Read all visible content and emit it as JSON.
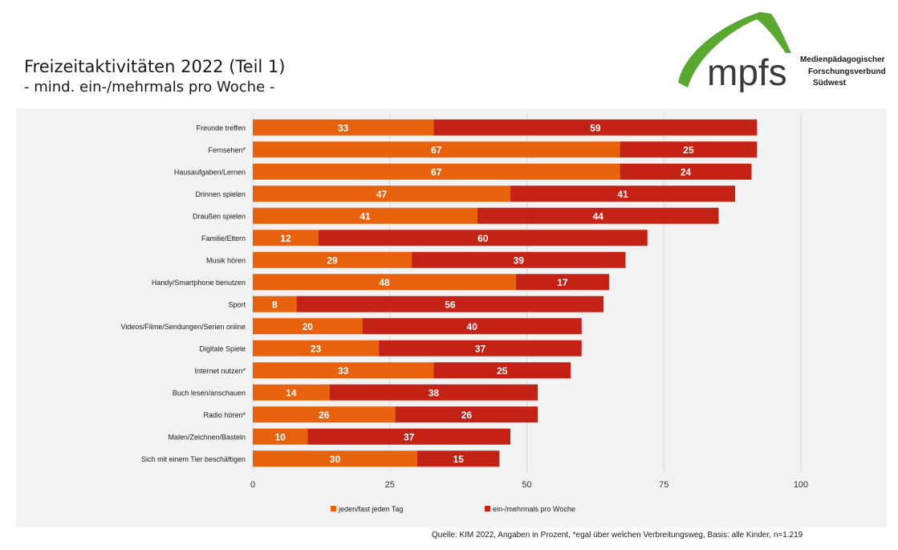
{
  "title": "Freizeitaktivitäten 2022 (Teil 1)",
  "subtitle": "- mind. ein-/mehrmals pro Woche -",
  "logo": {
    "wordmark": "mpfs",
    "lines": [
      "Medienpädagogischer",
      "Forschungsverbund",
      "Südwest"
    ],
    "green": "#5aa832",
    "dark": "#3a3a3a"
  },
  "footer": "Quelle: KIM 2022, Angaben in Prozent, *egal über welchen Verbreitungsweg, Basis: alle Kinder, n=1.219",
  "chart_data": {
    "type": "bar",
    "orientation": "horizontal",
    "stacked": true,
    "categories": [
      "Freunde treffen",
      "Fernsehen*",
      "Hausaufgaben/Lernen",
      "Drinnen spielen",
      "Draußen spielen",
      "Familie/Eltern",
      "Musik hören",
      "Handy/Smartphone benutzen",
      "Sport",
      "Videos/Filme/Sendungen/Serien online",
      "Digitale Spiele",
      "Internet nutzen*",
      "Buch lesen/anschauen",
      "Radio hören*",
      "Malen/Zeichnen/Basteln",
      "Sich mit einem Tier beschäftigen"
    ],
    "series": [
      {
        "name": "jeden/fast jeden Tag",
        "color": "#e8610c",
        "values": [
          33,
          67,
          67,
          47,
          41,
          12,
          29,
          48,
          8,
          20,
          23,
          33,
          14,
          26,
          10,
          30
        ]
      },
      {
        "name": "ein-/mehrmals pro Woche",
        "color": "#c42214",
        "values": [
          59,
          25,
          24,
          41,
          44,
          60,
          39,
          17,
          56,
          40,
          37,
          25,
          38,
          26,
          37,
          15
        ]
      }
    ],
    "xlim": [
      0,
      100
    ],
    "xticks": [
      0,
      25,
      50,
      75,
      100
    ],
    "grid": true,
    "legend_position": "bottom"
  }
}
